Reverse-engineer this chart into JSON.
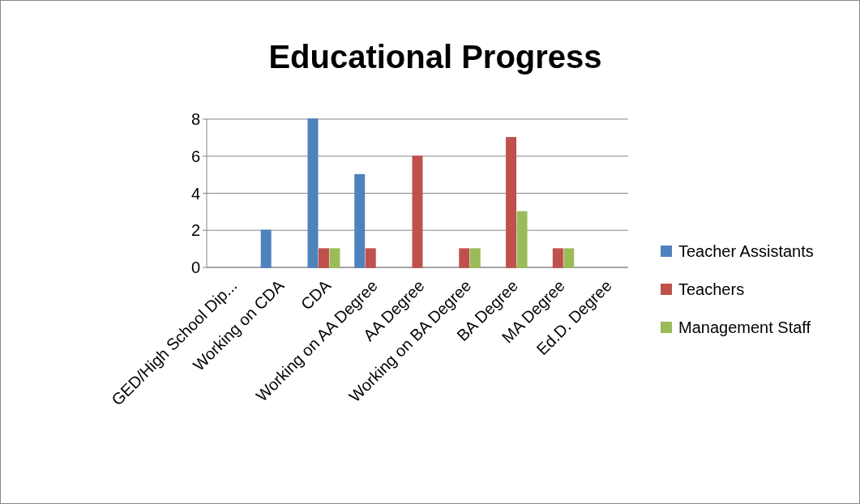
{
  "chart_data": {
    "type": "bar",
    "title": "Educational Progress",
    "categories": [
      "GED/High School Dip...",
      "Working on CDA",
      "CDA",
      "Working on AA Degree",
      "AA Degree",
      "Working on BA Degree",
      "BA Degree",
      "MA Degree",
      "Ed.D. Degree"
    ],
    "series": [
      {
        "name": "Teacher Assistants",
        "color": "#4f81bd",
        "values": [
          0,
          2,
          8,
          5,
          0,
          0,
          null,
          null,
          null
        ]
      },
      {
        "name": "Teachers",
        "color": "#c0504d",
        "values": [
          0,
          0,
          1,
          1,
          6,
          1,
          7,
          1,
          null
        ]
      },
      {
        "name": "Management Staff",
        "color": "#9bbb59",
        "values": [
          0,
          0,
          1,
          0,
          0,
          1,
          3,
          1,
          0
        ]
      }
    ],
    "ylim": [
      0,
      8
    ],
    "yticks": [
      0,
      2,
      4,
      6,
      8
    ],
    "grid": "y",
    "legend": "right"
  }
}
